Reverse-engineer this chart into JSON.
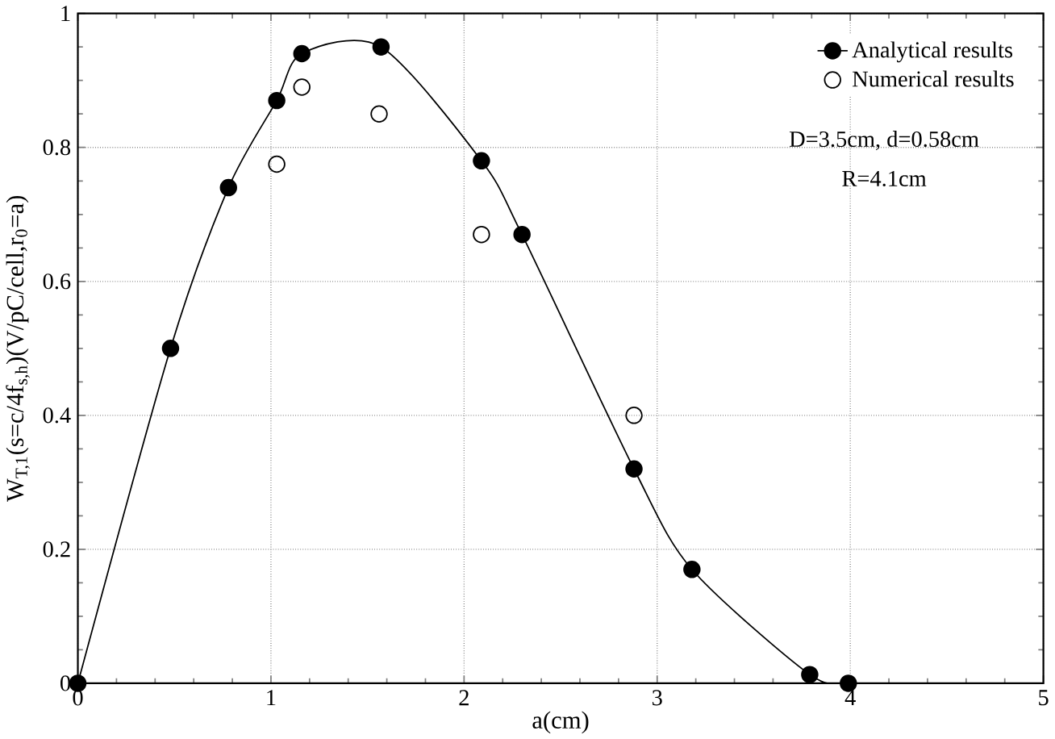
{
  "chart_data": {
    "type": "line",
    "xlabel": "a(cm)",
    "ylabel": "W$_{T,1}$(s=c/4f$_{s,h}$)(V/pC/cell,r$_{0}$=a)",
    "xlim": [
      0,
      5
    ],
    "ylim": [
      0,
      1
    ],
    "xticks": [
      0,
      1,
      2,
      3,
      4,
      5
    ],
    "yticks": [
      0,
      0.2,
      0.4,
      0.6,
      0.8,
      1
    ],
    "grid": true,
    "legend": "top right",
    "marker": "circle",
    "series": [
      {
        "name": "Analytical results",
        "color": "#000000",
        "x": [
          0,
          0.48,
          0.78,
          1.03,
          1.16,
          1.57,
          2.09,
          2.3,
          2.88,
          3.18,
          3.79,
          3.99
        ],
        "values": [
          0,
          0.5,
          0.74,
          0.87,
          0.94,
          0.95,
          0.78,
          0.67,
          0.32,
          0.17,
          0.013,
          0
        ]
      },
      {
        "name": "Numerical results",
        "type": "scatter",
        "color": "#000000",
        "x": [
          1.03,
          1.16,
          1.56,
          2.09,
          2.88
        ],
        "values": [
          0.775,
          0.89,
          0.85,
          0.67,
          0.4
        ]
      }
    ],
    "annotations": [
      "D=3.5cm, d=0.58cm",
      "R=4.1cm"
    ]
  }
}
